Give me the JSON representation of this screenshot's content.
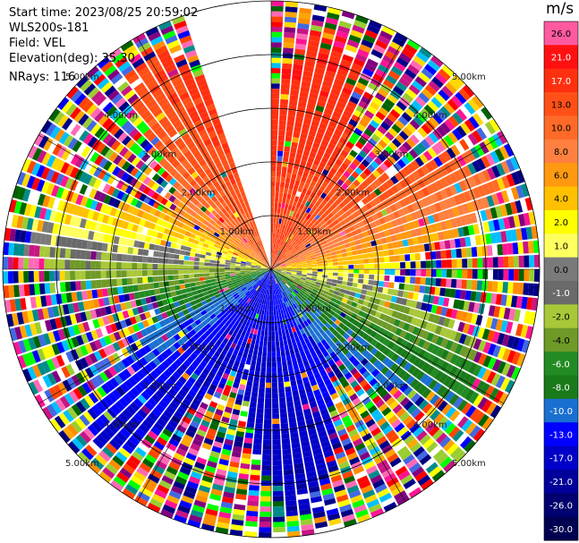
{
  "header": {
    "start_time": "Start time: 2023/08/25 20:59:02",
    "instrument": "WLS200s-181",
    "field": "Field: VEL",
    "elevation": "Elevation(deg): 35.30",
    "nrays": "NRays: 116"
  },
  "chart_data": {
    "type": "heatmap",
    "projection": "polar PPI scan",
    "field": "VEL",
    "units": "m/s",
    "rings_km": [
      1.0,
      2.0,
      3.0,
      4.0,
      5.0
    ],
    "ring_labels": [
      "1.00km",
      "2.00km",
      "3.00km",
      "4.00km",
      "5.00km"
    ],
    "max_range_km": 5.0,
    "nrays": 116,
    "missing_sector_deg": [
      340,
      360
    ],
    "colorbar": {
      "title": "m/s",
      "vmin": -30.0,
      "vmax": 30.0,
      "levels": [
        {
          "label": "26.0",
          "color": "#ff5aa0"
        },
        {
          "label": "21.0",
          "color": "#ff1010"
        },
        {
          "label": "17.0",
          "color": "#ff3010"
        },
        {
          "label": "13.0",
          "color": "#ff5018"
        },
        {
          "label": "10.0",
          "color": "#ff6a28"
        },
        {
          "label": "8.0",
          "color": "#ff8040"
        },
        {
          "label": "6.0",
          "color": "#ff9a10"
        },
        {
          "label": "4.0",
          "color": "#ffc000"
        },
        {
          "label": "2.0",
          "color": "#ffff00"
        },
        {
          "label": "1.0",
          "color": "#ffff60"
        },
        {
          "label": "0.0",
          "color": "#7a7a7a"
        },
        {
          "label": "-1.0",
          "color": "#6a6a6a"
        },
        {
          "label": "-2.0",
          "color": "#a8c838"
        },
        {
          "label": "-4.0",
          "color": "#6e9a28"
        },
        {
          "label": "-6.0",
          "color": "#238b23"
        },
        {
          "label": "-8.0",
          "color": "#1a7a1a"
        },
        {
          "label": "-10.0",
          "color": "#1a70d0"
        },
        {
          "label": "-13.0",
          "color": "#0000ff"
        },
        {
          "label": "-17.0",
          "color": "#0000c8"
        },
        {
          "label": "-21.0",
          "color": "#00009a"
        },
        {
          "label": "-26.0",
          "color": "#000070"
        },
        {
          "label": "-30.0",
          "color": "#000050"
        }
      ]
    }
  }
}
